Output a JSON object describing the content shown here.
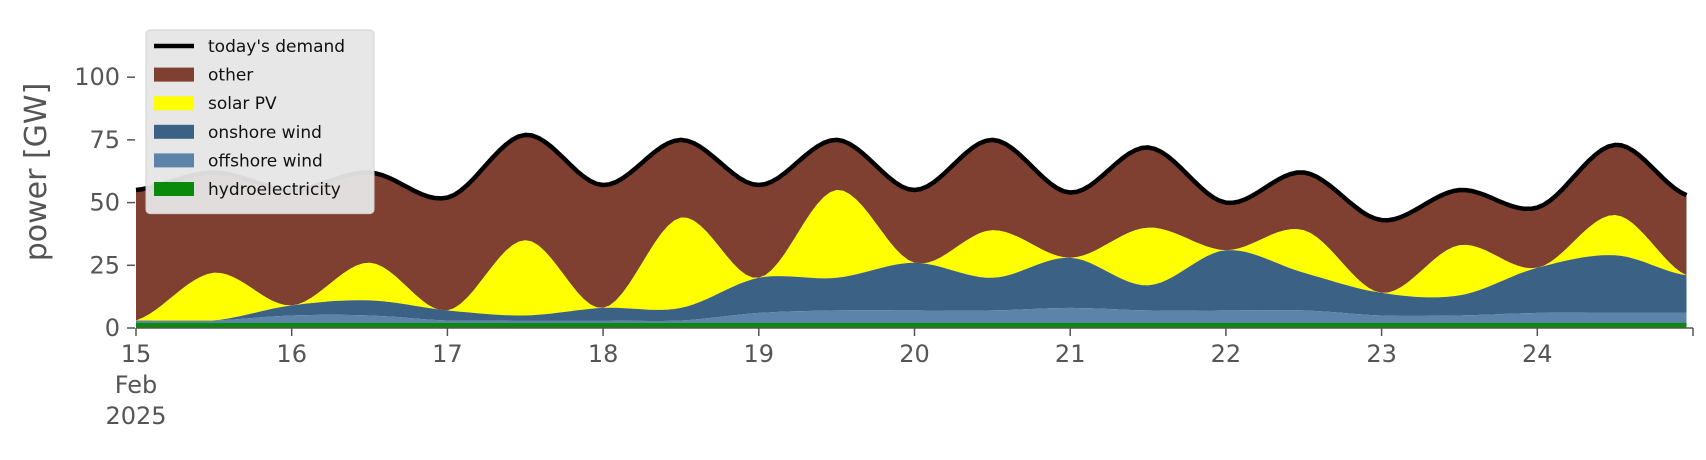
{
  "chart_data": {
    "type": "area",
    "title": "",
    "xlabel": "",
    "ylabel": "power [GW]",
    "ylim": [
      0,
      120
    ],
    "xlim": [
      "2025-02-15",
      "2025-02-25"
    ],
    "yticks": [
      0,
      25,
      50,
      75,
      100
    ],
    "xticks": [
      {
        "date": "2025-02-15",
        "label": "15",
        "sub": [
          "Feb",
          "2025"
        ]
      },
      {
        "date": "2025-02-16",
        "label": "16"
      },
      {
        "date": "2025-02-17",
        "label": "17"
      },
      {
        "date": "2025-02-18",
        "label": "18"
      },
      {
        "date": "2025-02-19",
        "label": "19"
      },
      {
        "date": "2025-02-20",
        "label": "20"
      },
      {
        "date": "2025-02-21",
        "label": "21"
      },
      {
        "date": "2025-02-22",
        "label": "22"
      },
      {
        "date": "2025-02-23",
        "label": "23"
      },
      {
        "date": "2025-02-24",
        "label": "24"
      }
    ],
    "legend_position": "top-left",
    "x": [
      "2025-02-15 00:00",
      "2025-02-15 12:00",
      "2025-02-16 00:00",
      "2025-02-16 12:00",
      "2025-02-17 00:00",
      "2025-02-17 12:00",
      "2025-02-18 00:00",
      "2025-02-18 12:00",
      "2025-02-19 00:00",
      "2025-02-19 12:00",
      "2025-02-20 00:00",
      "2025-02-20 12:00",
      "2025-02-21 00:00",
      "2025-02-21 12:00",
      "2025-02-22 00:00",
      "2025-02-22 12:00",
      "2025-02-23 00:00",
      "2025-02-23 12:00",
      "2025-02-24 00:00",
      "2025-02-24 12:00",
      "2025-02-24 23:00"
    ],
    "series": [
      {
        "name": "hydroelectricity",
        "color": "#0a8a0a",
        "kind": "area",
        "values": [
          2,
          2,
          2,
          2,
          2,
          2,
          2,
          2,
          2,
          2,
          2,
          2,
          2,
          2,
          2,
          2,
          2,
          2,
          2,
          2,
          2
        ]
      },
      {
        "name": "offshore wind",
        "color": "#5b84a8",
        "kind": "area",
        "values": [
          1,
          1,
          3,
          3,
          1,
          1,
          1,
          1,
          4,
          5,
          5,
          5,
          6,
          5,
          5,
          5,
          3,
          3,
          4,
          4,
          4
        ]
      },
      {
        "name": "onshore wind",
        "color": "#3b6185",
        "kind": "area",
        "values": [
          0,
          0,
          4,
          6,
          4,
          2,
          5,
          5,
          14,
          13,
          19,
          13,
          20,
          10,
          24,
          15,
          9,
          8,
          18,
          23,
          15
        ]
      },
      {
        "name": "solar PV",
        "color": "#ffff00",
        "kind": "area",
        "values": [
          0,
          19,
          0,
          15,
          0,
          30,
          0,
          36,
          0,
          35,
          0,
          19,
          0,
          23,
          0,
          17,
          0,
          20,
          0,
          16,
          0
        ]
      },
      {
        "name": "other",
        "color": "#7f4032",
        "kind": "area_top",
        "values": [
          55,
          62,
          55,
          62,
          52,
          77,
          57,
          75,
          57,
          75,
          55,
          75,
          54,
          72,
          50,
          62,
          43,
          55,
          48,
          73,
          53
        ]
      },
      {
        "name": "today's demand",
        "color": "#000000",
        "kind": "line",
        "values": [
          55,
          62,
          55,
          62,
          52,
          77,
          57,
          75,
          57,
          75,
          55,
          75,
          54,
          72,
          50,
          62,
          43,
          55,
          48,
          73,
          53
        ]
      }
    ]
  }
}
